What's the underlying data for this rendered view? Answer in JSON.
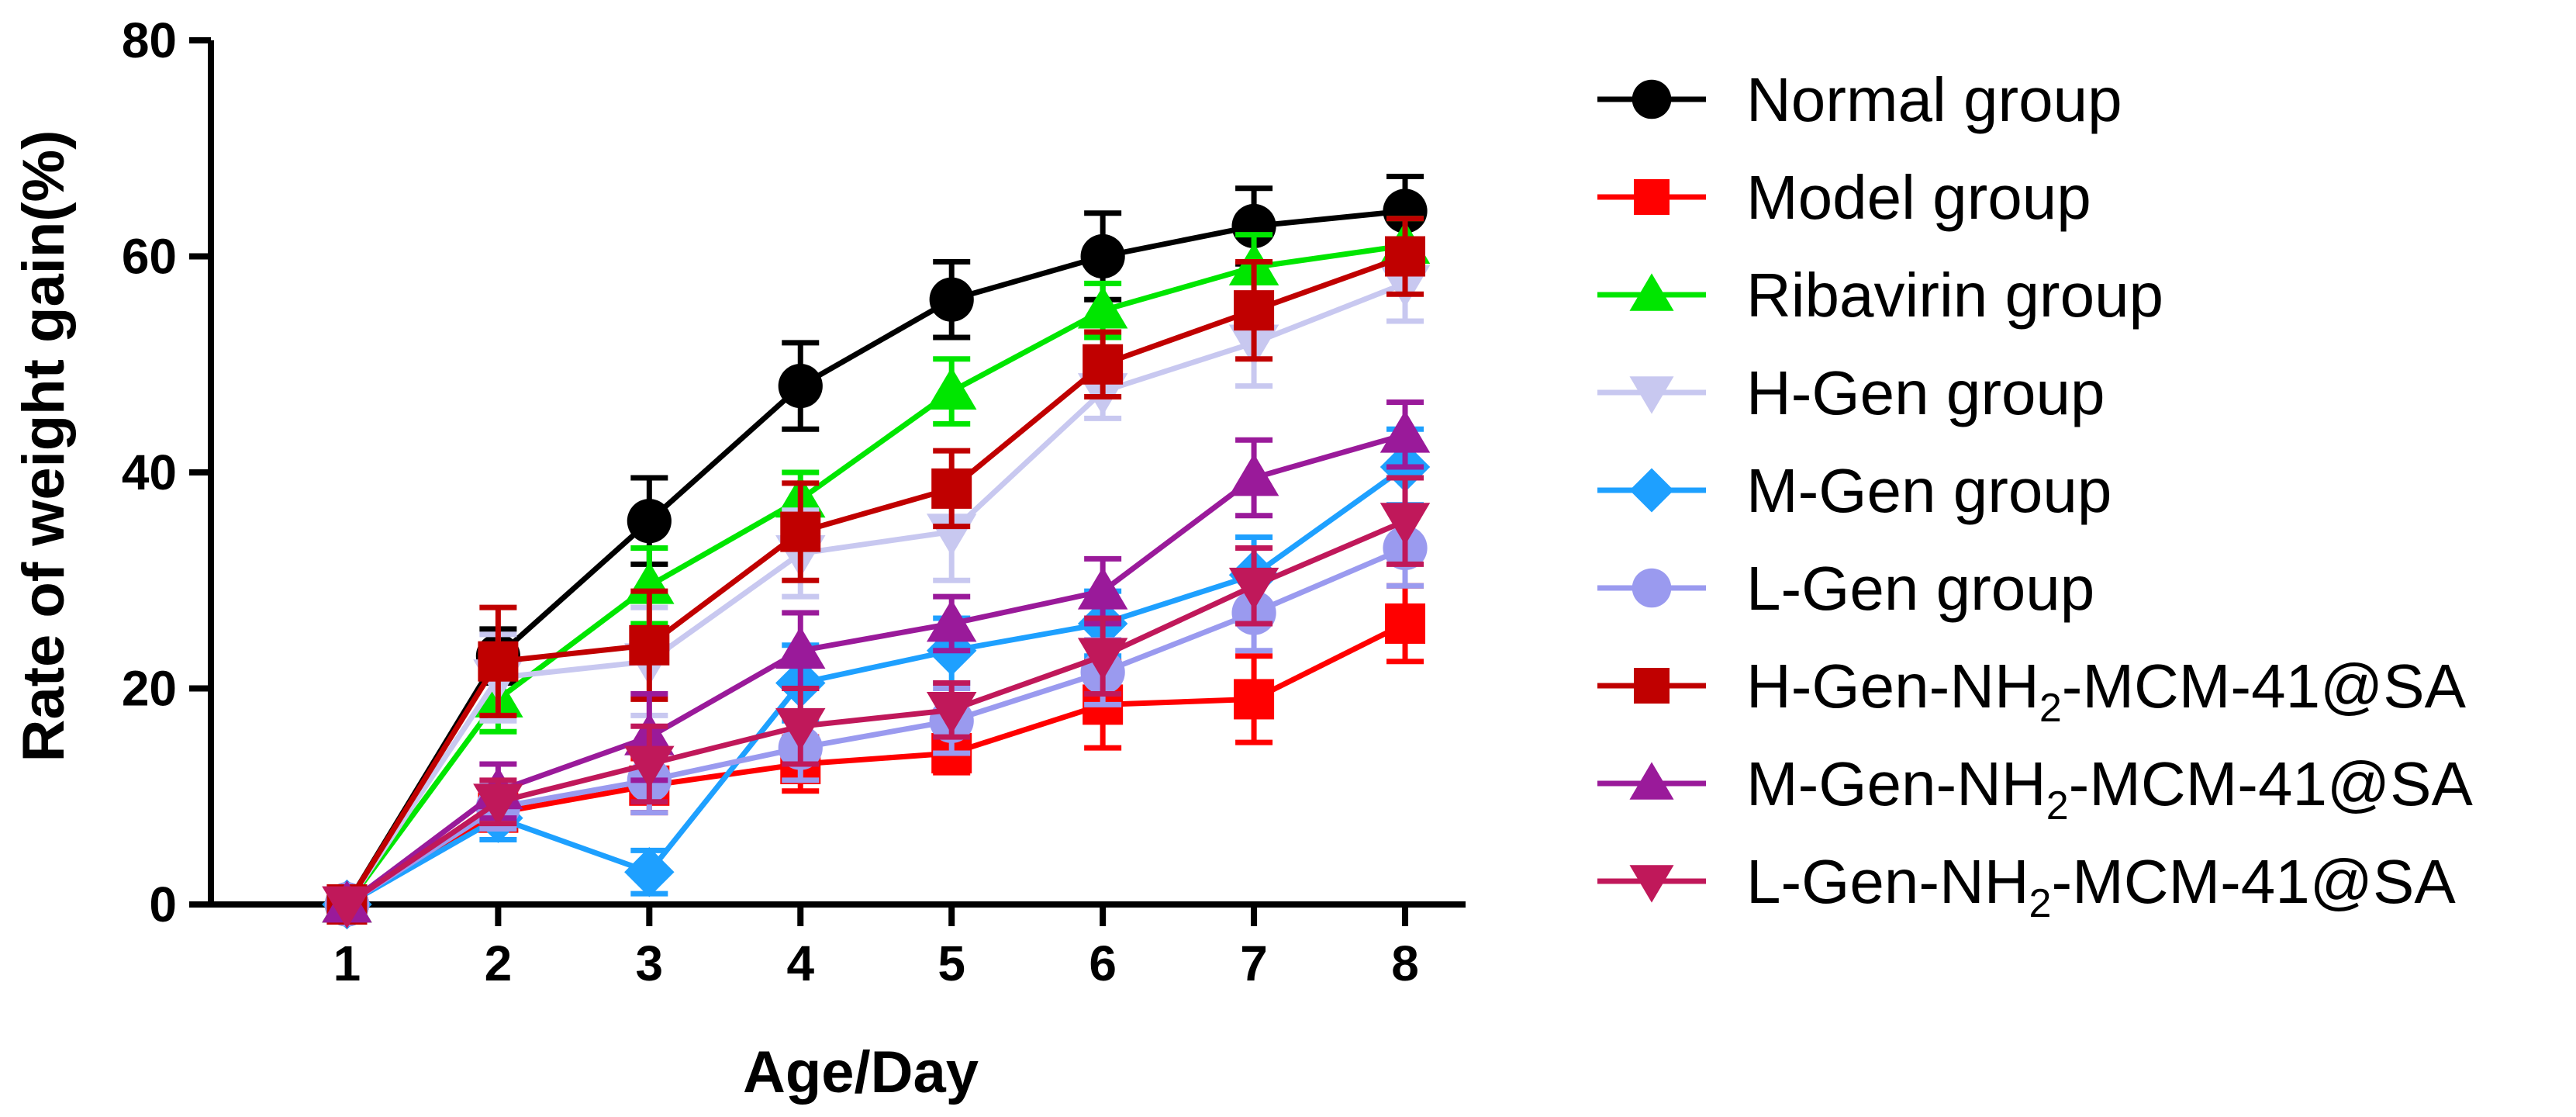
{
  "chart_data": {
    "type": "line",
    "title": "",
    "xlabel": "Age/Day",
    "ylabel": "Rate of weight gain(%)",
    "x": [
      1,
      2,
      3,
      4,
      5,
      6,
      7,
      8
    ],
    "xlim": [
      0.1,
      8.4
    ],
    "ylim": [
      0,
      80
    ],
    "yticks": [
      0,
      20,
      40,
      60,
      80
    ],
    "grid": false,
    "legend_position": "right",
    "series": [
      {
        "name": "Normal group",
        "label_parts": [
          "Normal group"
        ],
        "color": "#000000",
        "marker": "circle",
        "values": [
          0,
          23,
          35.5,
          48,
          56,
          60,
          62.8,
          64.2
        ],
        "errors": [
          0,
          2.5,
          4,
          4,
          3.5,
          4,
          3.5,
          3.2
        ]
      },
      {
        "name": "Model group",
        "label_parts": [
          "Model group"
        ],
        "color": "#ff0000",
        "marker": "square",
        "values": [
          0,
          8.5,
          11,
          13,
          14,
          18.5,
          19,
          26
        ],
        "errors": [
          0,
          1.5,
          2.5,
          2.5,
          1.8,
          4,
          4,
          3.5
        ]
      },
      {
        "name": "Ribavirin group",
        "label_parts": [
          "Ribavirin group"
        ],
        "color": "#00e600",
        "marker": "triangle-up",
        "values": [
          0,
          19,
          29.5,
          37.5,
          47.5,
          55,
          59,
          61
        ],
        "errors": [
          0,
          3,
          3.5,
          2.5,
          3,
          2.5,
          3,
          2.5
        ]
      },
      {
        "name": "H-Gen group",
        "label_parts": [
          "H-Gen group"
        ],
        "color": "#c8c8f0",
        "marker": "triangle-down",
        "values": [
          0,
          21,
          22.5,
          32.5,
          34.5,
          47.5,
          52,
          57.5
        ],
        "errors": [
          0,
          4,
          5,
          4,
          4.5,
          2.5,
          4,
          3.5
        ]
      },
      {
        "name": "M-Gen group",
        "label_parts": [
          "M-Gen group"
        ],
        "color": "#1ea0ff",
        "marker": "diamond",
        "values": [
          0,
          8,
          3,
          20.5,
          23.5,
          26,
          30.5,
          40.5
        ],
        "errors": [
          0,
          2,
          2,
          3.5,
          3,
          3,
          3.5,
          3.5
        ]
      },
      {
        "name": "L-Gen group",
        "label_parts": [
          "L-Gen group"
        ],
        "color": "#9a9aef",
        "marker": "circle",
        "values": [
          0,
          9,
          11.5,
          14.5,
          17,
          21.5,
          27,
          33
        ],
        "errors": [
          0,
          2,
          3,
          3,
          3,
          3,
          3.5,
          3.5
        ]
      },
      {
        "name": "H-Gen-NH2-MCM-41@SA",
        "label_parts": [
          "H-Gen-NH",
          "2",
          "-MCM-41@SA"
        ],
        "color": "#c00000",
        "marker": "square",
        "values": [
          0,
          22.5,
          24,
          34.5,
          38.5,
          50,
          55,
          60
        ],
        "errors": [
          0,
          5,
          5,
          4.5,
          3.5,
          3,
          4.5,
          3.5
        ]
      },
      {
        "name": "M-Gen-NH2-MCM-41@SA",
        "label_parts": [
          "M-Gen-NH",
          "2",
          "-MCM-41@SA"
        ],
        "color": "#9a1a9a",
        "marker": "triangle-up",
        "values": [
          0,
          10.5,
          15.5,
          23.5,
          26,
          29,
          39.5,
          43.5
        ],
        "errors": [
          0,
          2.5,
          4,
          3.5,
          2.5,
          3,
          3.5,
          3
        ]
      },
      {
        "name": "L-Gen-NH2-MCM-41@SA",
        "label_parts": [
          "L-Gen-NH",
          "2",
          "-MCM-41@SA"
        ],
        "color": "#c0185a",
        "marker": "triangle-down",
        "values": [
          0,
          9.5,
          13,
          16.5,
          18,
          23,
          29.5,
          35.5
        ],
        "errors": [
          0,
          2,
          3.5,
          3.5,
          2.5,
          3.5,
          3.5,
          4
        ]
      }
    ]
  }
}
